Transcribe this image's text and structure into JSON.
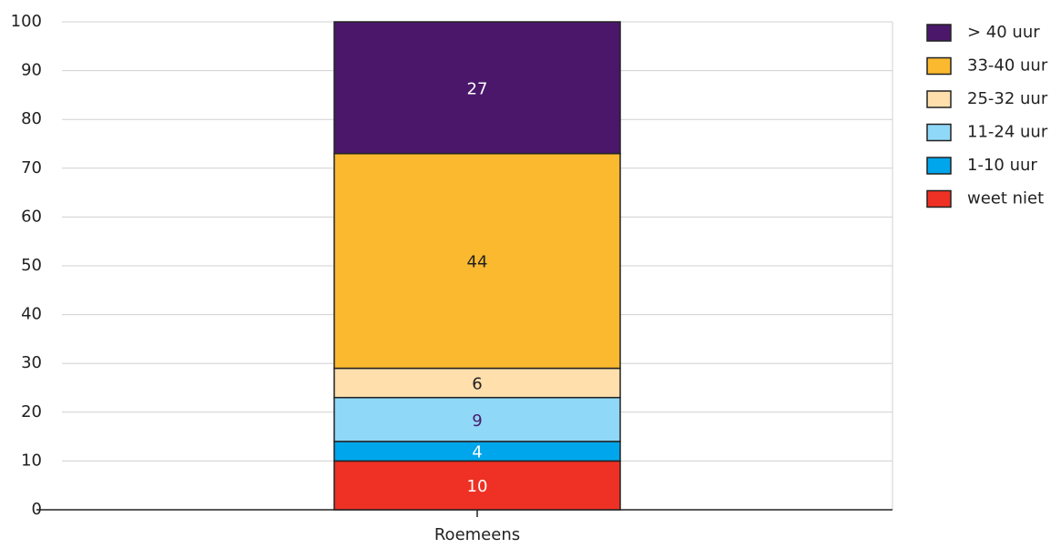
{
  "chart_data": {
    "type": "stacked_bar",
    "categories": [
      "Roemeens"
    ],
    "series": [
      {
        "name": "weet niet",
        "color": "#ee3124",
        "label_color": "#ffffff",
        "values": [
          10
        ]
      },
      {
        "name": "1-10 uur",
        "color": "#00a6eb",
        "label_color": "#ffffff",
        "values": [
          4
        ]
      },
      {
        "name": "11-24 uur",
        "color": "#8fd8f8",
        "label_color": "#4a1a6e",
        "values": [
          9
        ]
      },
      {
        "name": "25-32 uur",
        "color": "#ffdfac",
        "label_color": "#222222",
        "values": [
          6
        ]
      },
      {
        "name": "33-40 uur",
        "color": "#fbb92f",
        "label_color": "#222222",
        "values": [
          44
        ]
      },
      {
        "name": "> 40 uur",
        "color": "#4a176b",
        "label_color": "#ffffff",
        "values": [
          27
        ]
      }
    ],
    "ylim": [
      0,
      100
    ],
    "yticks": [
      0,
      10,
      20,
      30,
      40,
      50,
      60,
      70,
      80,
      90,
      100
    ],
    "grid": true,
    "legend": "right"
  }
}
